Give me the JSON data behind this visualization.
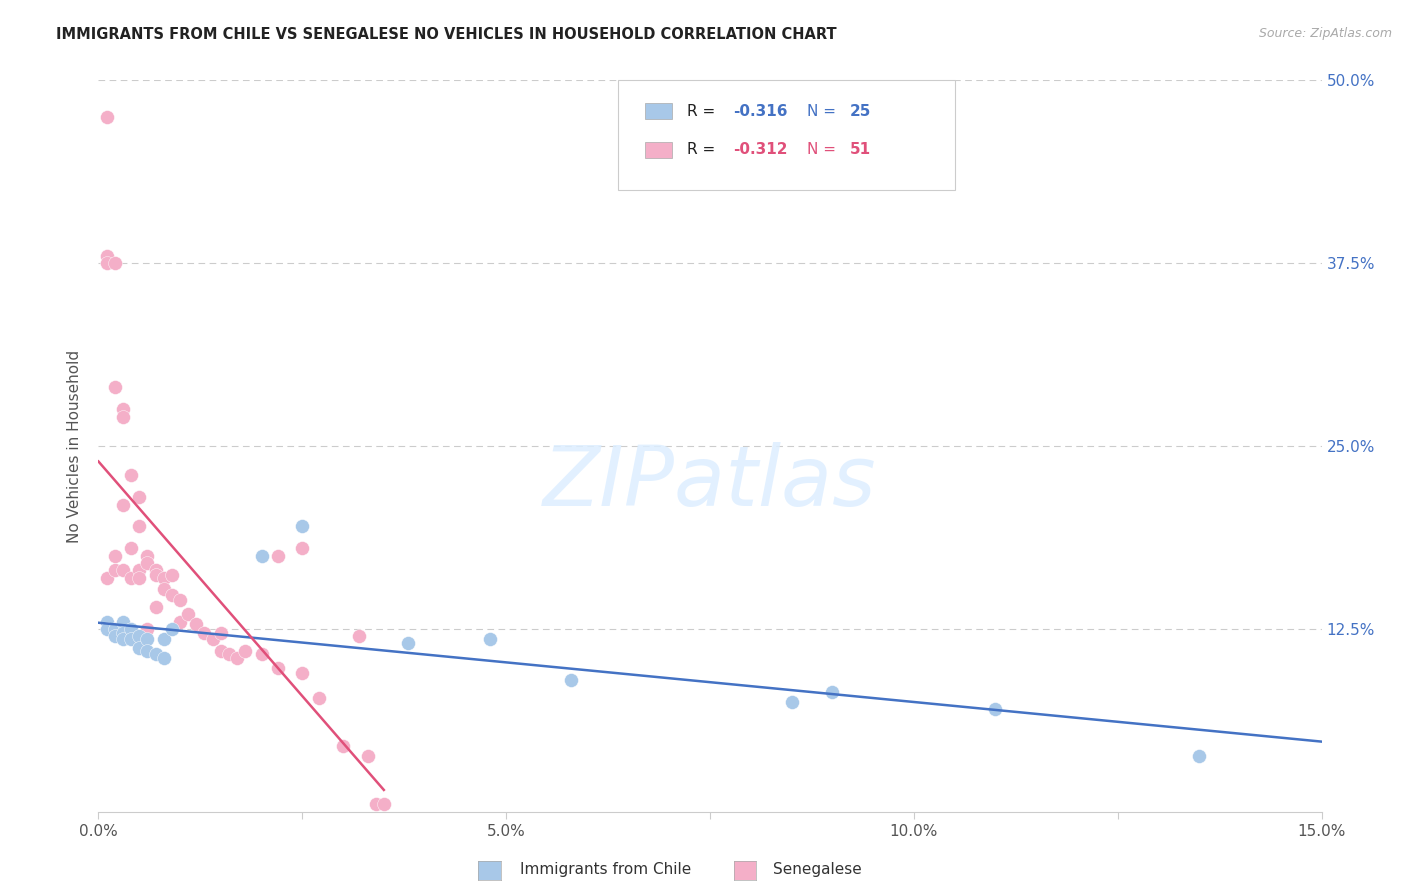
{
  "title": "IMMIGRANTS FROM CHILE VS SENEGALESE NO VEHICLES IN HOUSEHOLD CORRELATION CHART",
  "source": "Source: ZipAtlas.com",
  "ylabel": "No Vehicles in Household",
  "xlim": [
    0.0,
    0.15
  ],
  "ylim": [
    0.0,
    0.5
  ],
  "color_blue": "#a8c8e8",
  "color_pink": "#f4afc8",
  "line_blue": "#4472c4",
  "line_pink": "#e0507a",
  "background": "#ffffff",
  "chile_x": [
    0.001,
    0.001,
    0.002,
    0.002,
    0.003,
    0.003,
    0.003,
    0.004,
    0.004,
    0.005,
    0.005,
    0.006,
    0.006,
    0.007,
    0.008,
    0.008,
    0.009,
    0.02,
    0.025,
    0.038,
    0.048,
    0.058,
    0.085,
    0.09,
    0.11,
    0.135
  ],
  "chile_y": [
    0.13,
    0.125,
    0.125,
    0.12,
    0.13,
    0.122,
    0.118,
    0.125,
    0.118,
    0.12,
    0.112,
    0.118,
    0.11,
    0.108,
    0.118,
    0.105,
    0.125,
    0.175,
    0.195,
    0.115,
    0.118,
    0.09,
    0.075,
    0.082,
    0.07,
    0.038
  ],
  "senegal_x": [
    0.001,
    0.001,
    0.001,
    0.001,
    0.002,
    0.002,
    0.002,
    0.002,
    0.003,
    0.003,
    0.003,
    0.003,
    0.004,
    0.004,
    0.004,
    0.005,
    0.005,
    0.005,
    0.005,
    0.006,
    0.006,
    0.006,
    0.007,
    0.007,
    0.007,
    0.008,
    0.008,
    0.009,
    0.009,
    0.01,
    0.01,
    0.011,
    0.012,
    0.013,
    0.014,
    0.015,
    0.015,
    0.016,
    0.017,
    0.018,
    0.02,
    0.022,
    0.022,
    0.025,
    0.025,
    0.027,
    0.03,
    0.032,
    0.033,
    0.034,
    0.035
  ],
  "senegal_y": [
    0.475,
    0.38,
    0.375,
    0.16,
    0.375,
    0.29,
    0.175,
    0.165,
    0.275,
    0.27,
    0.21,
    0.165,
    0.23,
    0.18,
    0.16,
    0.215,
    0.195,
    0.165,
    0.16,
    0.175,
    0.17,
    0.125,
    0.165,
    0.162,
    0.14,
    0.16,
    0.152,
    0.162,
    0.148,
    0.145,
    0.13,
    0.135,
    0.128,
    0.122,
    0.118,
    0.122,
    0.11,
    0.108,
    0.105,
    0.11,
    0.108,
    0.098,
    0.175,
    0.095,
    0.18,
    0.078,
    0.045,
    0.12,
    0.038,
    0.005,
    0.005
  ]
}
